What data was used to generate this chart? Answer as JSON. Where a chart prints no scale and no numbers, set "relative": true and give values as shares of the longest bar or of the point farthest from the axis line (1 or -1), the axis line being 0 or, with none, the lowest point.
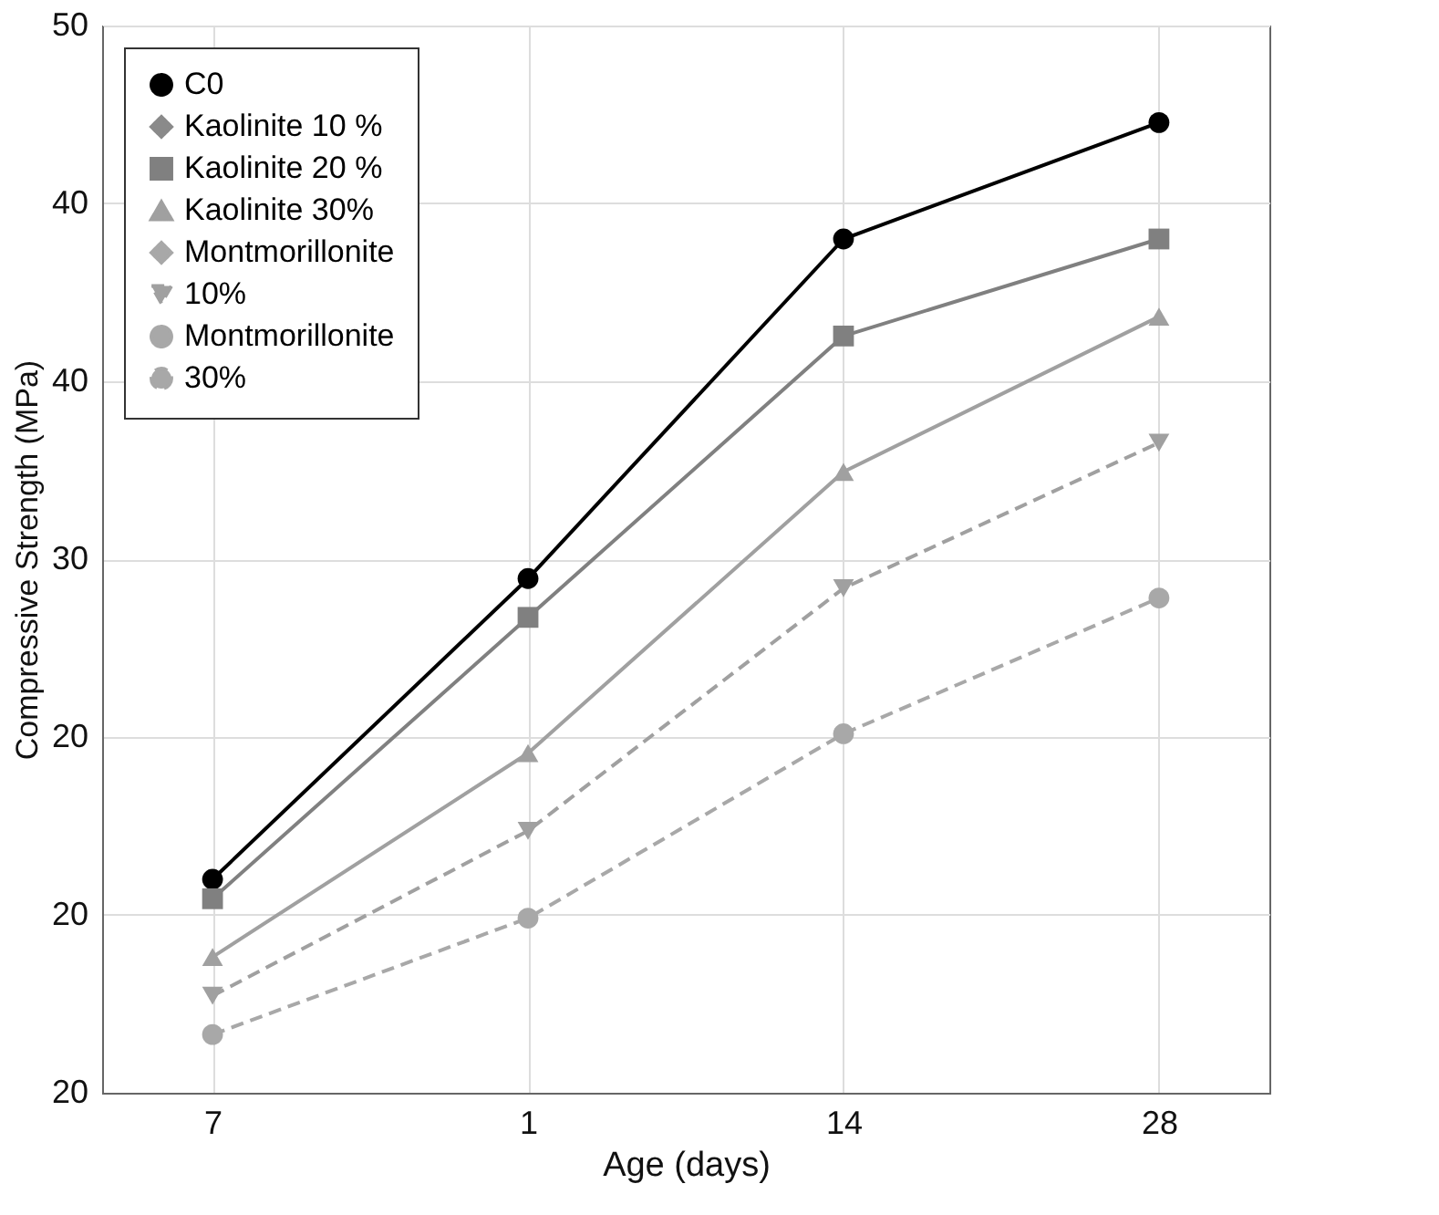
{
  "chart_data": {
    "type": "line",
    "xlabel": "Age (days)",
    "ylabel": "Compressive Strength (MPa)",
    "categories": [
      "7",
      "1",
      "14",
      "28"
    ],
    "relative": true,
    "annotations": [
      "50",
      "40",
      "40",
      "30",
      "20",
      "20",
      "20"
    ],
    "grid": true,
    "legend": "top left",
    "series": [
      {
        "name": "C0",
        "color": "#000000",
        "marker": "circle",
        "line_style": "solid",
        "values": [
          0.22,
          0.53,
          0.88,
          1
        ]
      },
      {
        "name": "Kaolinite 10 %",
        "color": "#8a8a8a",
        "marker": "diamond",
        "line_style": "solid",
        "values": [
          null,
          null,
          null,
          null
        ]
      },
      {
        "name": "Kaolinite 20 %",
        "color": "#808080",
        "marker": "square",
        "line_style": "solid",
        "values": [
          0.2,
          0.49,
          0.78,
          0.88
        ]
      },
      {
        "name": "Kaolinite 30%",
        "color": "#a0a0a0",
        "marker": "triangle",
        "line_style": "solid",
        "values": [
          0.14,
          0.35,
          0.64,
          0.8
        ]
      },
      {
        "name": "Montmorillonite",
        "color": "#a8a8a8",
        "marker": "diamond",
        "line_style": "solid",
        "values": [
          null,
          null,
          null,
          null
        ]
      },
      {
        "name": "10%",
        "color": "#a0a0a0",
        "marker": "triangle-down",
        "line_style": "dashed",
        "values": [
          0.1,
          0.27,
          0.52,
          0.67
        ]
      },
      {
        "name": "Montmorillonite",
        "color": "#a8a8a8",
        "marker": "circle",
        "line_style": "solid",
        "values": [
          null,
          null,
          null,
          null
        ]
      },
      {
        "name": "30%",
        "color": "#a8a8a8",
        "marker": "circle",
        "line_style": "dashed",
        "values": [
          0.06,
          0.18,
          0.37,
          0.51
        ]
      }
    ]
  }
}
